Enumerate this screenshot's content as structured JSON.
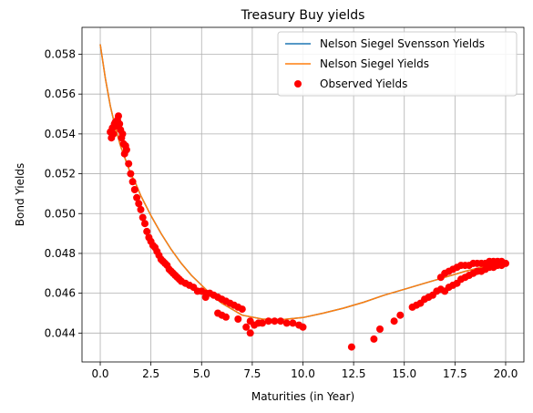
{
  "chart_data": {
    "type": "scatter",
    "title": "Treasury Buy yields",
    "xlabel": "Maturities (in Year)",
    "ylabel": "Bond Yields",
    "xlim": [
      -0.9,
      20.9
    ],
    "ylim": [
      0.04255,
      0.05935
    ],
    "xticks": [
      0.0,
      2.5,
      5.0,
      7.5,
      10.0,
      12.5,
      15.0,
      17.5,
      20.0
    ],
    "xtick_labels": [
      "0.0",
      "2.5",
      "5.0",
      "7.5",
      "10.0",
      "12.5",
      "15.0",
      "17.5",
      "20.0"
    ],
    "yticks": [
      0.044,
      0.046,
      0.048,
      0.05,
      0.052,
      0.054,
      0.056,
      0.058
    ],
    "ytick_labels": [
      "0.044",
      "0.046",
      "0.048",
      "0.050",
      "0.052",
      "0.054",
      "0.056",
      "0.058"
    ],
    "grid": true,
    "legend_position": "top-right",
    "series": [
      {
        "name": "Nelson Siegel Svensson Yields",
        "kind": "line",
        "color": "#1f77b4",
        "x": [
          0.0,
          0.25,
          0.5,
          0.75,
          1.0,
          1.25,
          1.5,
          1.75,
          2.0,
          2.5,
          3.0,
          3.5,
          4.0,
          4.5,
          5.0,
          5.5,
          6.0,
          6.5,
          7.0,
          7.5,
          8.0,
          8.5,
          9.0,
          10.0,
          11.0,
          12.0,
          13.0,
          14.0,
          15.0,
          16.0,
          17.0,
          18.0,
          19.0,
          20.0
        ],
        "y": [
          0.0585,
          0.0568,
          0.0554,
          0.0543,
          0.0534,
          0.0527,
          0.052,
          0.0515,
          0.0509,
          0.0499,
          0.049,
          0.0482,
          0.0475,
          0.0469,
          0.0464,
          0.0459,
          0.0455,
          0.0452,
          0.0449,
          0.0448,
          0.0447,
          0.04468,
          0.04468,
          0.04478,
          0.045,
          0.04525,
          0.04555,
          0.0459,
          0.0462,
          0.0465,
          0.0468,
          0.0471,
          0.04735,
          0.0476
        ]
      },
      {
        "name": "Nelson Siegel Yields",
        "kind": "line",
        "color": "#ff7f0e",
        "x": [
          0.0,
          0.25,
          0.5,
          0.75,
          1.0,
          1.25,
          1.5,
          1.75,
          2.0,
          2.5,
          3.0,
          3.5,
          4.0,
          4.5,
          5.0,
          5.5,
          6.0,
          6.5,
          7.0,
          7.5,
          8.0,
          8.5,
          9.0,
          10.0,
          11.0,
          12.0,
          13.0,
          14.0,
          15.0,
          16.0,
          17.0,
          18.0,
          19.0,
          20.0
        ],
        "y": [
          0.0585,
          0.0568,
          0.0554,
          0.0543,
          0.0534,
          0.0527,
          0.052,
          0.0515,
          0.0509,
          0.0499,
          0.049,
          0.0482,
          0.0475,
          0.0469,
          0.0464,
          0.0459,
          0.0455,
          0.0452,
          0.0449,
          0.0448,
          0.0447,
          0.04468,
          0.04468,
          0.04478,
          0.045,
          0.04525,
          0.04555,
          0.0459,
          0.0462,
          0.0465,
          0.0468,
          0.0471,
          0.04735,
          0.0476
        ]
      },
      {
        "name": "Observed Yields",
        "kind": "scatter",
        "color": "#ff0000",
        "x": [
          0.5,
          0.55,
          0.6,
          0.65,
          0.7,
          0.75,
          0.8,
          0.85,
          0.9,
          0.95,
          1.0,
          1.05,
          1.1,
          1.15,
          1.2,
          1.25,
          1.3,
          1.4,
          1.5,
          1.6,
          1.7,
          1.8,
          1.9,
          2.0,
          2.1,
          2.2,
          2.3,
          2.4,
          2.5,
          2.6,
          2.7,
          2.8,
          2.9,
          3.0,
          3.1,
          3.2,
          3.3,
          3.4,
          3.5,
          3.6,
          3.7,
          3.8,
          3.9,
          4.0,
          4.2,
          4.4,
          4.6,
          4.8,
          5.0,
          5.2,
          5.4,
          5.6,
          5.8,
          6.0,
          6.2,
          6.4,
          6.6,
          6.8,
          7.0,
          7.2,
          7.4,
          7.6,
          7.8,
          8.0,
          8.3,
          8.6,
          8.9,
          9.2,
          9.5,
          9.8,
          10.0,
          5.2,
          5.8,
          6.0,
          6.2,
          6.8,
          7.4,
          12.4,
          13.5,
          13.8,
          14.5,
          14.8,
          15.4,
          15.6,
          15.8,
          16.0,
          16.2,
          16.4,
          16.6,
          16.8,
          17.0,
          17.2,
          17.4,
          17.6,
          17.8,
          18.0,
          18.2,
          18.4,
          18.6,
          18.8,
          19.0,
          19.2,
          19.4,
          19.6,
          19.8,
          20.0,
          16.8,
          17.0,
          17.2,
          17.4,
          17.6,
          17.8,
          18.0,
          18.2,
          18.4,
          18.6,
          18.8,
          19.0,
          19.2,
          19.4,
          19.6,
          19.8
        ],
        "y": [
          0.0541,
          0.0538,
          0.0543,
          0.054,
          0.0545,
          0.0546,
          0.0544,
          0.0547,
          0.0549,
          0.0545,
          0.0542,
          0.0538,
          0.054,
          0.0535,
          0.053,
          0.0534,
          0.0532,
          0.0525,
          0.052,
          0.0516,
          0.0512,
          0.0508,
          0.0505,
          0.0502,
          0.0498,
          0.0495,
          0.0491,
          0.0488,
          0.0486,
          0.0484,
          0.0483,
          0.0481,
          0.0479,
          0.0477,
          0.0476,
          0.0475,
          0.0474,
          0.0472,
          0.0471,
          0.047,
          0.0469,
          0.0468,
          0.0467,
          0.0466,
          0.0465,
          0.0464,
          0.0463,
          0.0461,
          0.0461,
          0.046,
          0.046,
          0.0459,
          0.0458,
          0.0457,
          0.0456,
          0.0455,
          0.0454,
          0.0453,
          0.0452,
          0.0443,
          0.044,
          0.0444,
          0.0445,
          0.0445,
          0.0446,
          0.0446,
          0.0446,
          0.0445,
          0.0445,
          0.0444,
          0.0443,
          0.0458,
          0.045,
          0.0449,
          0.0448,
          0.0447,
          0.0446,
          0.0433,
          0.0437,
          0.0442,
          0.0446,
          0.0449,
          0.0453,
          0.0454,
          0.0455,
          0.0457,
          0.0458,
          0.0459,
          0.0461,
          0.0462,
          0.0461,
          0.0463,
          0.0464,
          0.0465,
          0.0467,
          0.0468,
          0.0469,
          0.047,
          0.0471,
          0.0471,
          0.0472,
          0.0473,
          0.0473,
          0.0474,
          0.0474,
          0.0475,
          0.0468,
          0.047,
          0.0471,
          0.0472,
          0.0473,
          0.0474,
          0.0474,
          0.0474,
          0.0475,
          0.0475,
          0.0475,
          0.0475,
          0.0476,
          0.0476,
          0.0476,
          0.0476
        ]
      }
    ]
  }
}
